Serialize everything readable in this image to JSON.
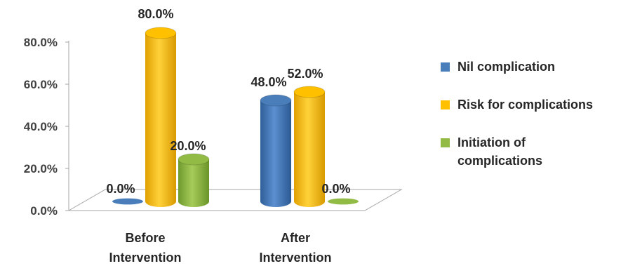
{
  "chart_data": {
    "type": "bar",
    "categories": [
      "Before Intervention",
      "After Intervention"
    ],
    "category_lines": [
      [
        "Before",
        "Intervention"
      ],
      [
        "After",
        "Intervention"
      ]
    ],
    "series": [
      {
        "name": "Nil complication",
        "values": [
          0.0,
          48.0
        ],
        "labels": [
          "0.0%",
          "48.0%"
        ],
        "color": "#4a7ebb"
      },
      {
        "name": "Risk for complications",
        "values": [
          80.0,
          52.0
        ],
        "labels": [
          "80.0%",
          "52.0%"
        ],
        "color": "#ffc000"
      },
      {
        "name": "Initiation of complications",
        "values": [
          20.0,
          0.0
        ],
        "labels": [
          "20.0%",
          "0.0%"
        ],
        "color": "#92bb45"
      }
    ],
    "yticks": [
      "0.0%",
      "20.0%",
      "40.0%",
      "60.0%",
      "80.0%"
    ],
    "ylim": [
      0,
      80
    ],
    "grid": false,
    "legend_position": "right",
    "style": "3d-cylinder"
  },
  "legend": {
    "items": [
      {
        "label": "Nil complication",
        "color": "#4a7ebb"
      },
      {
        "label": "Risk for complications",
        "color": "#ffc000"
      },
      {
        "label_lines": [
          "Initiation of",
          "complications"
        ],
        "color": "#92bb45"
      }
    ]
  }
}
